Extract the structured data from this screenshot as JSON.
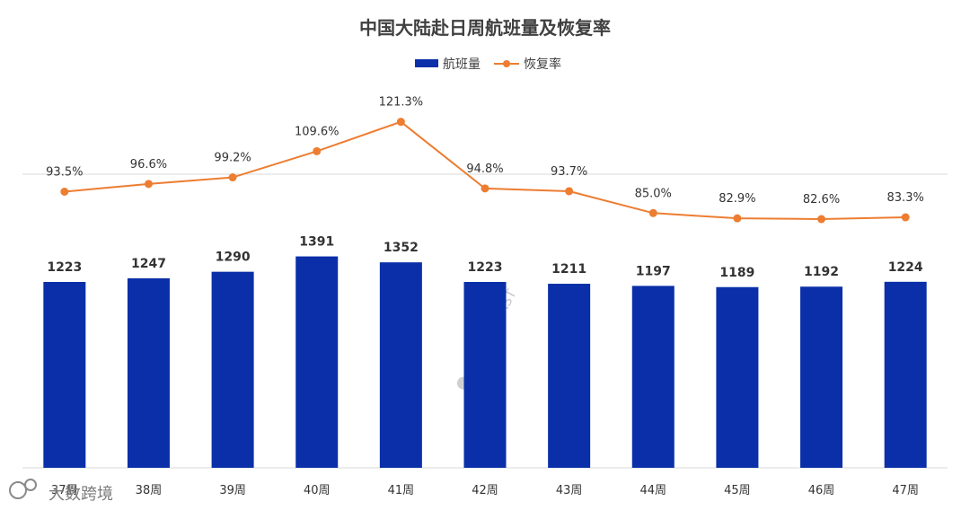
{
  "chart_data": {
    "type": "bar",
    "title": "中国大陆赴日周航班量及恢复率",
    "categories": [
      "37周",
      "38周",
      "39周",
      "40周",
      "41周",
      "42周",
      "43周",
      "44周",
      "45周",
      "46周",
      "47周"
    ],
    "series": [
      {
        "name": "航班量",
        "type": "bar",
        "color": "#0a2fa8",
        "values": [
          1223,
          1247,
          1290,
          1391,
          1352,
          1223,
          1211,
          1197,
          1189,
          1192,
          1224
        ]
      },
      {
        "name": "恢复率",
        "type": "line",
        "color": "#ed7d31",
        "values": [
          93.5,
          96.6,
          99.2,
          109.6,
          121.3,
          94.8,
          93.7,
          85.0,
          82.9,
          82.6,
          83.3
        ],
        "labels": [
          "93.5%",
          "96.6%",
          "99.2%",
          "109.6%",
          "121.3%",
          "94.8%",
          "93.7%",
          "85.0%",
          "82.9%",
          "82.6%",
          "83.3%"
        ]
      }
    ],
    "bar_range": [
      0,
      1400
    ],
    "rate_range": [
      50,
      150
    ],
    "legend_position": "top-center",
    "xlabel": "",
    "ylabel": ""
  },
  "watermark": "航班管家 DAST",
  "brand": "大数跨境"
}
